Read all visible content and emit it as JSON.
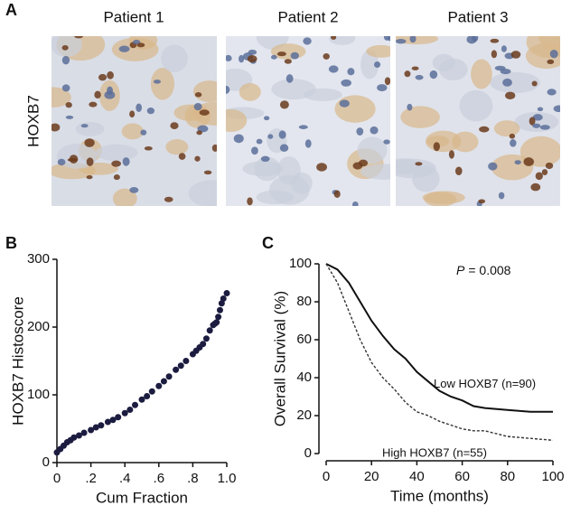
{
  "panel_labels": [
    "A",
    "B",
    "C"
  ],
  "images": {
    "row_label": "HOXB7",
    "columns": [
      "Patient 1",
      "Patient 2",
      "Patient 3"
    ]
  },
  "chart_data": [
    {
      "type": "scatter",
      "x_label": "Cum Fraction",
      "y_label": "HOXB7 Histoscore",
      "color": "#1c1c40",
      "x": [
        0,
        0.02,
        0.04,
        0.06,
        0.08,
        0.1,
        0.13,
        0.16,
        0.2,
        0.23,
        0.26,
        0.3,
        0.33,
        0.36,
        0.4,
        0.43,
        0.46,
        0.5,
        0.53,
        0.56,
        0.6,
        0.63,
        0.66,
        0.7,
        0.73,
        0.76,
        0.8,
        0.82,
        0.84,
        0.86,
        0.88,
        0.9,
        0.92,
        0.93,
        0.94,
        0.95,
        0.96,
        0.97,
        0.98,
        1.0
      ],
      "values": [
        15,
        20,
        25,
        30,
        33,
        37,
        40,
        44,
        48,
        52,
        55,
        60,
        63,
        67,
        73,
        78,
        85,
        93,
        98,
        105,
        113,
        120,
        127,
        137,
        143,
        150,
        160,
        165,
        170,
        175,
        183,
        195,
        203,
        205,
        207,
        215,
        225,
        235,
        242,
        250
      ],
      "xlim": [
        0,
        1
      ],
      "xticks": [
        0,
        {
          "value": 0.2,
          "label": ".2"
        },
        {
          "value": 0.4,
          "label": ".4"
        },
        {
          "value": 0.6,
          "label": ".6"
        },
        {
          "value": 0.8,
          "label": ".8"
        },
        {
          "value": 1,
          "label": "1.0"
        }
      ],
      "ylim": [
        0,
        300
      ],
      "yticks": [
        0,
        100,
        200,
        300
      ]
    },
    {
      "type": "line",
      "x_label": "Time (months)",
      "y_label": "Overall Survival (%)",
      "annotation": {
        "italic": "P",
        "text": "= 0.008"
      },
      "x": [
        0,
        5,
        10,
        15,
        20,
        25,
        30,
        35,
        40,
        45,
        50,
        55,
        60,
        65,
        70,
        80,
        90,
        100
      ],
      "series": [
        {
          "name": "Low HOXB7 (n=90)",
          "color": "#111111",
          "dash": false,
          "values": [
            100,
            97,
            90,
            80,
            70,
            62,
            55,
            50,
            43,
            38,
            33,
            30,
            28,
            25,
            24,
            23,
            22,
            22
          ]
        },
        {
          "name": "High HOXB7 (n=55)",
          "color": "#333333",
          "dash": true,
          "values": [
            100,
            90,
            75,
            60,
            48,
            40,
            34,
            27,
            22,
            20,
            17,
            15,
            13,
            12,
            12,
            9,
            8,
            7
          ]
        }
      ],
      "xlim": [
        0,
        100
      ],
      "xticks": [
        0,
        20,
        40,
        60,
        80,
        100
      ],
      "ylim": [
        0,
        100
      ],
      "yticks": [
        0,
        20,
        40,
        60,
        80,
        100
      ]
    }
  ]
}
